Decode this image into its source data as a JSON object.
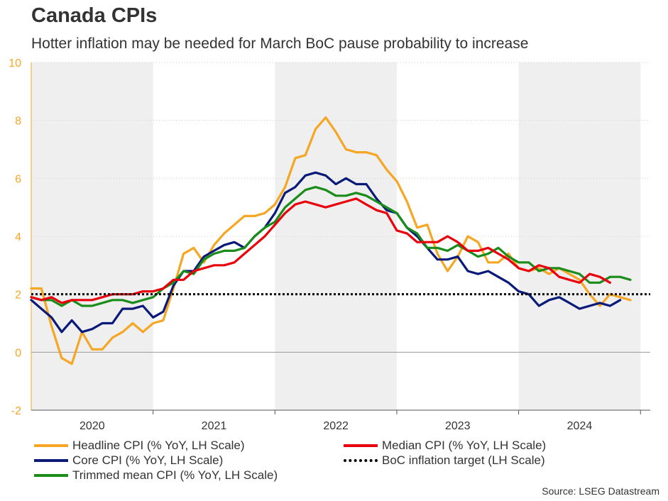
{
  "title": "Canada CPIs",
  "subtitle": "Hotter inflation may be needed for March BoC pause probability to increase",
  "source": "Source: LSEG Datastream",
  "colors": {
    "headline": "#f5a623",
    "core": "#0a1a78",
    "trimmed": "#1a8c1a",
    "median": "#e8000b",
    "target": "#000000",
    "shade": "#efefef",
    "axis": "#f5a623"
  },
  "chart_data": {
    "type": "line",
    "title": "Canada CPIs",
    "subtitle": "Hotter inflation may be needed for March BoC pause probability to increase",
    "ylim": [
      -2,
      10
    ],
    "yticks": [
      "-2",
      "0",
      "2",
      "4",
      "6",
      "8",
      "10"
    ],
    "xlim": [
      2020.0,
      2025.08
    ],
    "year_labels": [
      "2020",
      "2021",
      "2022",
      "2023",
      "2024"
    ],
    "shaded_years": [
      "2020",
      "2022",
      "2024"
    ],
    "target": 2.0,
    "legend": [
      {
        "key": "headline",
        "label": "Headline CPI (% YoY, LH Scale)"
      },
      {
        "key": "median",
        "label": "Median CPI (% YoY, LH Scale)"
      },
      {
        "key": "core",
        "label": "Core CPI (% YoY, LH Scale)"
      },
      {
        "key": "target",
        "label": "BoC inflation target (LH Scale)"
      },
      {
        "key": "trimmed",
        "label": "Trimmed mean CPI (% YoY, LH Scale)"
      }
    ],
    "series": [
      {
        "key": "headline",
        "name": "Headline CPI (% YoY, LH Scale)",
        "values": [
          2.2,
          2.2,
          0.9,
          -0.2,
          -0.4,
          0.7,
          0.1,
          0.1,
          0.5,
          0.7,
          1.0,
          0.7,
          1.0,
          1.1,
          2.2,
          3.4,
          3.6,
          3.1,
          3.7,
          4.1,
          4.4,
          4.7,
          4.7,
          4.8,
          5.1,
          5.7,
          6.7,
          6.8,
          7.7,
          8.1,
          7.6,
          7.0,
          6.9,
          6.9,
          6.8,
          6.3,
          5.9,
          5.2,
          4.3,
          4.4,
          3.4,
          2.8,
          3.3,
          4.0,
          3.8,
          3.1,
          3.1,
          3.4,
          2.9,
          2.8,
          2.9,
          2.7,
          2.9,
          2.7,
          2.5,
          2.0,
          1.6,
          2.0,
          1.9,
          1.8
        ]
      },
      {
        "key": "core",
        "name": "Core CPI (% YoY, LH Scale)",
        "values": [
          1.8,
          1.5,
          1.2,
          0.7,
          1.1,
          0.7,
          0.8,
          1.0,
          1.0,
          1.5,
          1.5,
          1.6,
          1.2,
          1.4,
          2.3,
          2.8,
          2.8,
          3.3,
          3.5,
          3.7,
          3.8,
          3.6,
          4.0,
          4.3,
          4.8,
          5.5,
          5.7,
          6.1,
          6.2,
          6.1,
          5.8,
          6.0,
          5.8,
          5.8,
          5.3,
          4.9,
          4.8,
          4.3,
          4.0,
          3.6,
          3.2,
          3.2,
          3.3,
          2.8,
          2.7,
          2.8,
          2.6,
          2.4,
          2.1,
          2.0,
          1.6,
          1.8,
          1.9,
          1.7,
          1.5,
          1.6,
          1.7,
          1.6,
          1.8
        ]
      },
      {
        "key": "trimmed",
        "name": "Trimmed mean CPI (% YoY, LH Scale)",
        "values": [
          1.9,
          1.8,
          1.8,
          1.6,
          1.8,
          1.6,
          1.6,
          1.7,
          1.8,
          1.8,
          1.7,
          1.8,
          1.9,
          2.2,
          2.4,
          2.8,
          2.7,
          3.2,
          3.4,
          3.5,
          3.5,
          3.6,
          4.0,
          4.3,
          4.5,
          5.0,
          5.3,
          5.6,
          5.7,
          5.6,
          5.4,
          5.4,
          5.5,
          5.4,
          5.2,
          5.0,
          4.8,
          4.3,
          4.1,
          3.6,
          3.6,
          3.5,
          3.7,
          3.5,
          3.3,
          3.4,
          3.6,
          3.3,
          3.1,
          3.1,
          2.8,
          2.9,
          2.9,
          2.8,
          2.7,
          2.4,
          2.4,
          2.6,
          2.6,
          2.5
        ]
      },
      {
        "key": "median",
        "name": "Median CPI (% YoY, LH Scale)",
        "values": [
          1.9,
          1.8,
          1.9,
          1.7,
          1.8,
          1.8,
          1.8,
          1.9,
          2.0,
          2.0,
          2.0,
          2.1,
          2.1,
          2.2,
          2.5,
          2.5,
          2.8,
          2.9,
          3.0,
          3.0,
          3.1,
          3.4,
          3.7,
          4.0,
          4.4,
          4.8,
          5.1,
          5.2,
          5.1,
          5.0,
          5.1,
          5.2,
          5.3,
          5.1,
          4.9,
          4.8,
          4.2,
          4.1,
          3.8,
          3.8,
          3.8,
          4.0,
          3.8,
          3.5,
          3.5,
          3.6,
          3.4,
          3.2,
          2.9,
          2.8,
          3.0,
          2.9,
          2.6,
          2.5,
          2.4,
          2.7,
          2.6,
          2.4
        ]
      }
    ]
  }
}
